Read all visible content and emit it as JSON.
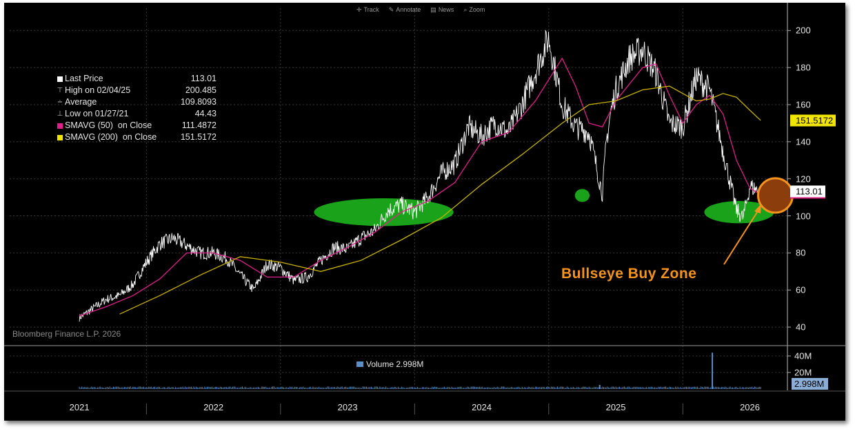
{
  "toolbar": {
    "track": {
      "icon": "crosshair-icon",
      "label": "Track"
    },
    "annotate": {
      "icon": "pencil-icon",
      "label": "Annotate"
    },
    "news": {
      "icon": "news-icon",
      "label": "News"
    },
    "zoom": {
      "icon": "magnifier-icon",
      "label": "Zoom"
    }
  },
  "legend": [
    {
      "symbol": "square",
      "color": "#ffffff",
      "label": "Last Price",
      "value": "113.01"
    },
    {
      "symbol": "high",
      "color": "#bbbbbb",
      "label": "High on 02/04/25",
      "value": "200.485"
    },
    {
      "symbol": "avg",
      "color": "#bbbbbb",
      "label": "Average",
      "value": "109.8093"
    },
    {
      "symbol": "low",
      "color": "#bbbbbb",
      "label": "Low on 01/27/21",
      "value": "44.43"
    },
    {
      "symbol": "square",
      "color": "#e0208c",
      "label": "SMAVG (50)  on Close",
      "value": "111.4872"
    },
    {
      "symbol": "square",
      "color": "#f2e600",
      "label": "SMAVG (200)  on Close",
      "value": "151.5172"
    }
  ],
  "watermark": "Bloomberg Finance L.P. 2026",
  "volume_label": "Volume 2.998M",
  "price_tags": {
    "sma200": "151.5172",
    "last": "113.01",
    "volume": "2.998M"
  },
  "annotation": "Bullseye Buy Zone",
  "colors": {
    "price": "#ffffff",
    "sma50": "#e0208c",
    "sma200": "#c8b400",
    "highlight": "#1aa31a",
    "target": "#f7941d",
    "volume": "#5b8fc6"
  },
  "chart_data": {
    "type": "line",
    "x_axis_labels": [
      "2021",
      "2022",
      "2023",
      "2024",
      "2025",
      "2026"
    ],
    "ylim": [
      30,
      212
    ],
    "y_ticks": [
      40,
      60,
      80,
      100,
      120,
      140,
      160,
      180,
      200
    ],
    "grid": true,
    "series": [
      {
        "name": "Last Price",
        "x": [
          2021.0,
          2021.1,
          2021.2,
          2021.3,
          2021.4,
          2021.5,
          2021.6,
          2021.7,
          2021.8,
          2021.9,
          2022.0,
          2022.1,
          2022.2,
          2022.3,
          2022.4,
          2022.5,
          2022.6,
          2022.7,
          2022.8,
          2022.9,
          2023.0,
          2023.1,
          2023.2,
          2023.3,
          2023.4,
          2023.5,
          2023.6,
          2023.7,
          2023.8,
          2023.9,
          2024.0,
          2024.1,
          2024.2,
          2024.3,
          2024.4,
          2024.5,
          2024.6,
          2024.7,
          2024.8,
          2024.9,
          2024.93,
          2024.96,
          2025.0,
          2025.1,
          2025.2,
          2025.3,
          2025.4,
          2025.5,
          2025.6,
          2025.7,
          2025.8,
          2025.9,
          2025.95,
          2026.0,
          2026.08
        ],
        "values": [
          45,
          50,
          55,
          57,
          63,
          75,
          85,
          88,
          84,
          80,
          80,
          77,
          68,
          60,
          74,
          72,
          65,
          67,
          76,
          83,
          82,
          88,
          92,
          103,
          106,
          102,
          110,
          123,
          128,
          148,
          143,
          150,
          145,
          160,
          178,
          196,
          160,
          148,
          145,
          112,
          140,
          155,
          168,
          185,
          190,
          177,
          150,
          148,
          175,
          168,
          135,
          103,
          99,
          116,
          113
        ]
      },
      {
        "name": "SMAVG (50)",
        "x": [
          2021.0,
          2021.2,
          2021.4,
          2021.6,
          2021.8,
          2022.0,
          2022.2,
          2022.4,
          2022.6,
          2022.8,
          2023.0,
          2023.2,
          2023.4,
          2023.6,
          2023.8,
          2024.0,
          2024.2,
          2024.4,
          2024.6,
          2024.7,
          2024.8,
          2024.9,
          2025.0,
          2025.2,
          2025.3,
          2025.4,
          2025.5,
          2025.6,
          2025.7,
          2025.8,
          2025.9,
          2026.0,
          2026.08
        ],
        "values": [
          46,
          51,
          57,
          66,
          80,
          80,
          76,
          67,
          67,
          76,
          83,
          91,
          102,
          108,
          118,
          140,
          145,
          162,
          185,
          170,
          150,
          148,
          162,
          180,
          182,
          165,
          150,
          160,
          165,
          155,
          130,
          115,
          111.4872
        ]
      },
      {
        "name": "SMAVG (200)",
        "x": [
          2021.3,
          2021.6,
          2021.9,
          2022.2,
          2022.5,
          2022.8,
          2023.1,
          2023.4,
          2023.7,
          2024.0,
          2024.3,
          2024.6,
          2024.8,
          2025.0,
          2025.2,
          2025.4,
          2025.6,
          2025.7,
          2025.8,
          2025.9,
          2026.0,
          2026.08
        ],
        "values": [
          47,
          57,
          68,
          78,
          75,
          70,
          76,
          87,
          99,
          117,
          133,
          150,
          160,
          162,
          168,
          170,
          162,
          163,
          166,
          164,
          157,
          151.5172
        ]
      }
    ],
    "volume": {
      "ylim": [
        0,
        45
      ],
      "y_ticks": [
        "40M",
        "20M"
      ],
      "unit": "M",
      "spikes": [
        {
          "x": 2025.72,
          "value": 44
        },
        {
          "x": 2024.88,
          "value": 5
        }
      ]
    },
    "highlights": [
      {
        "x": 2023.27,
        "y": 102,
        "rx_years": 0.52,
        "ry": 7.5
      },
      {
        "x": 2024.75,
        "y": 111,
        "rx_years": 0.055,
        "ry": 3.5
      },
      {
        "x": 2025.92,
        "y": 102,
        "rx_years": 0.26,
        "ry": 6
      }
    ],
    "target": {
      "x": 2026.19,
      "y": 111
    }
  }
}
